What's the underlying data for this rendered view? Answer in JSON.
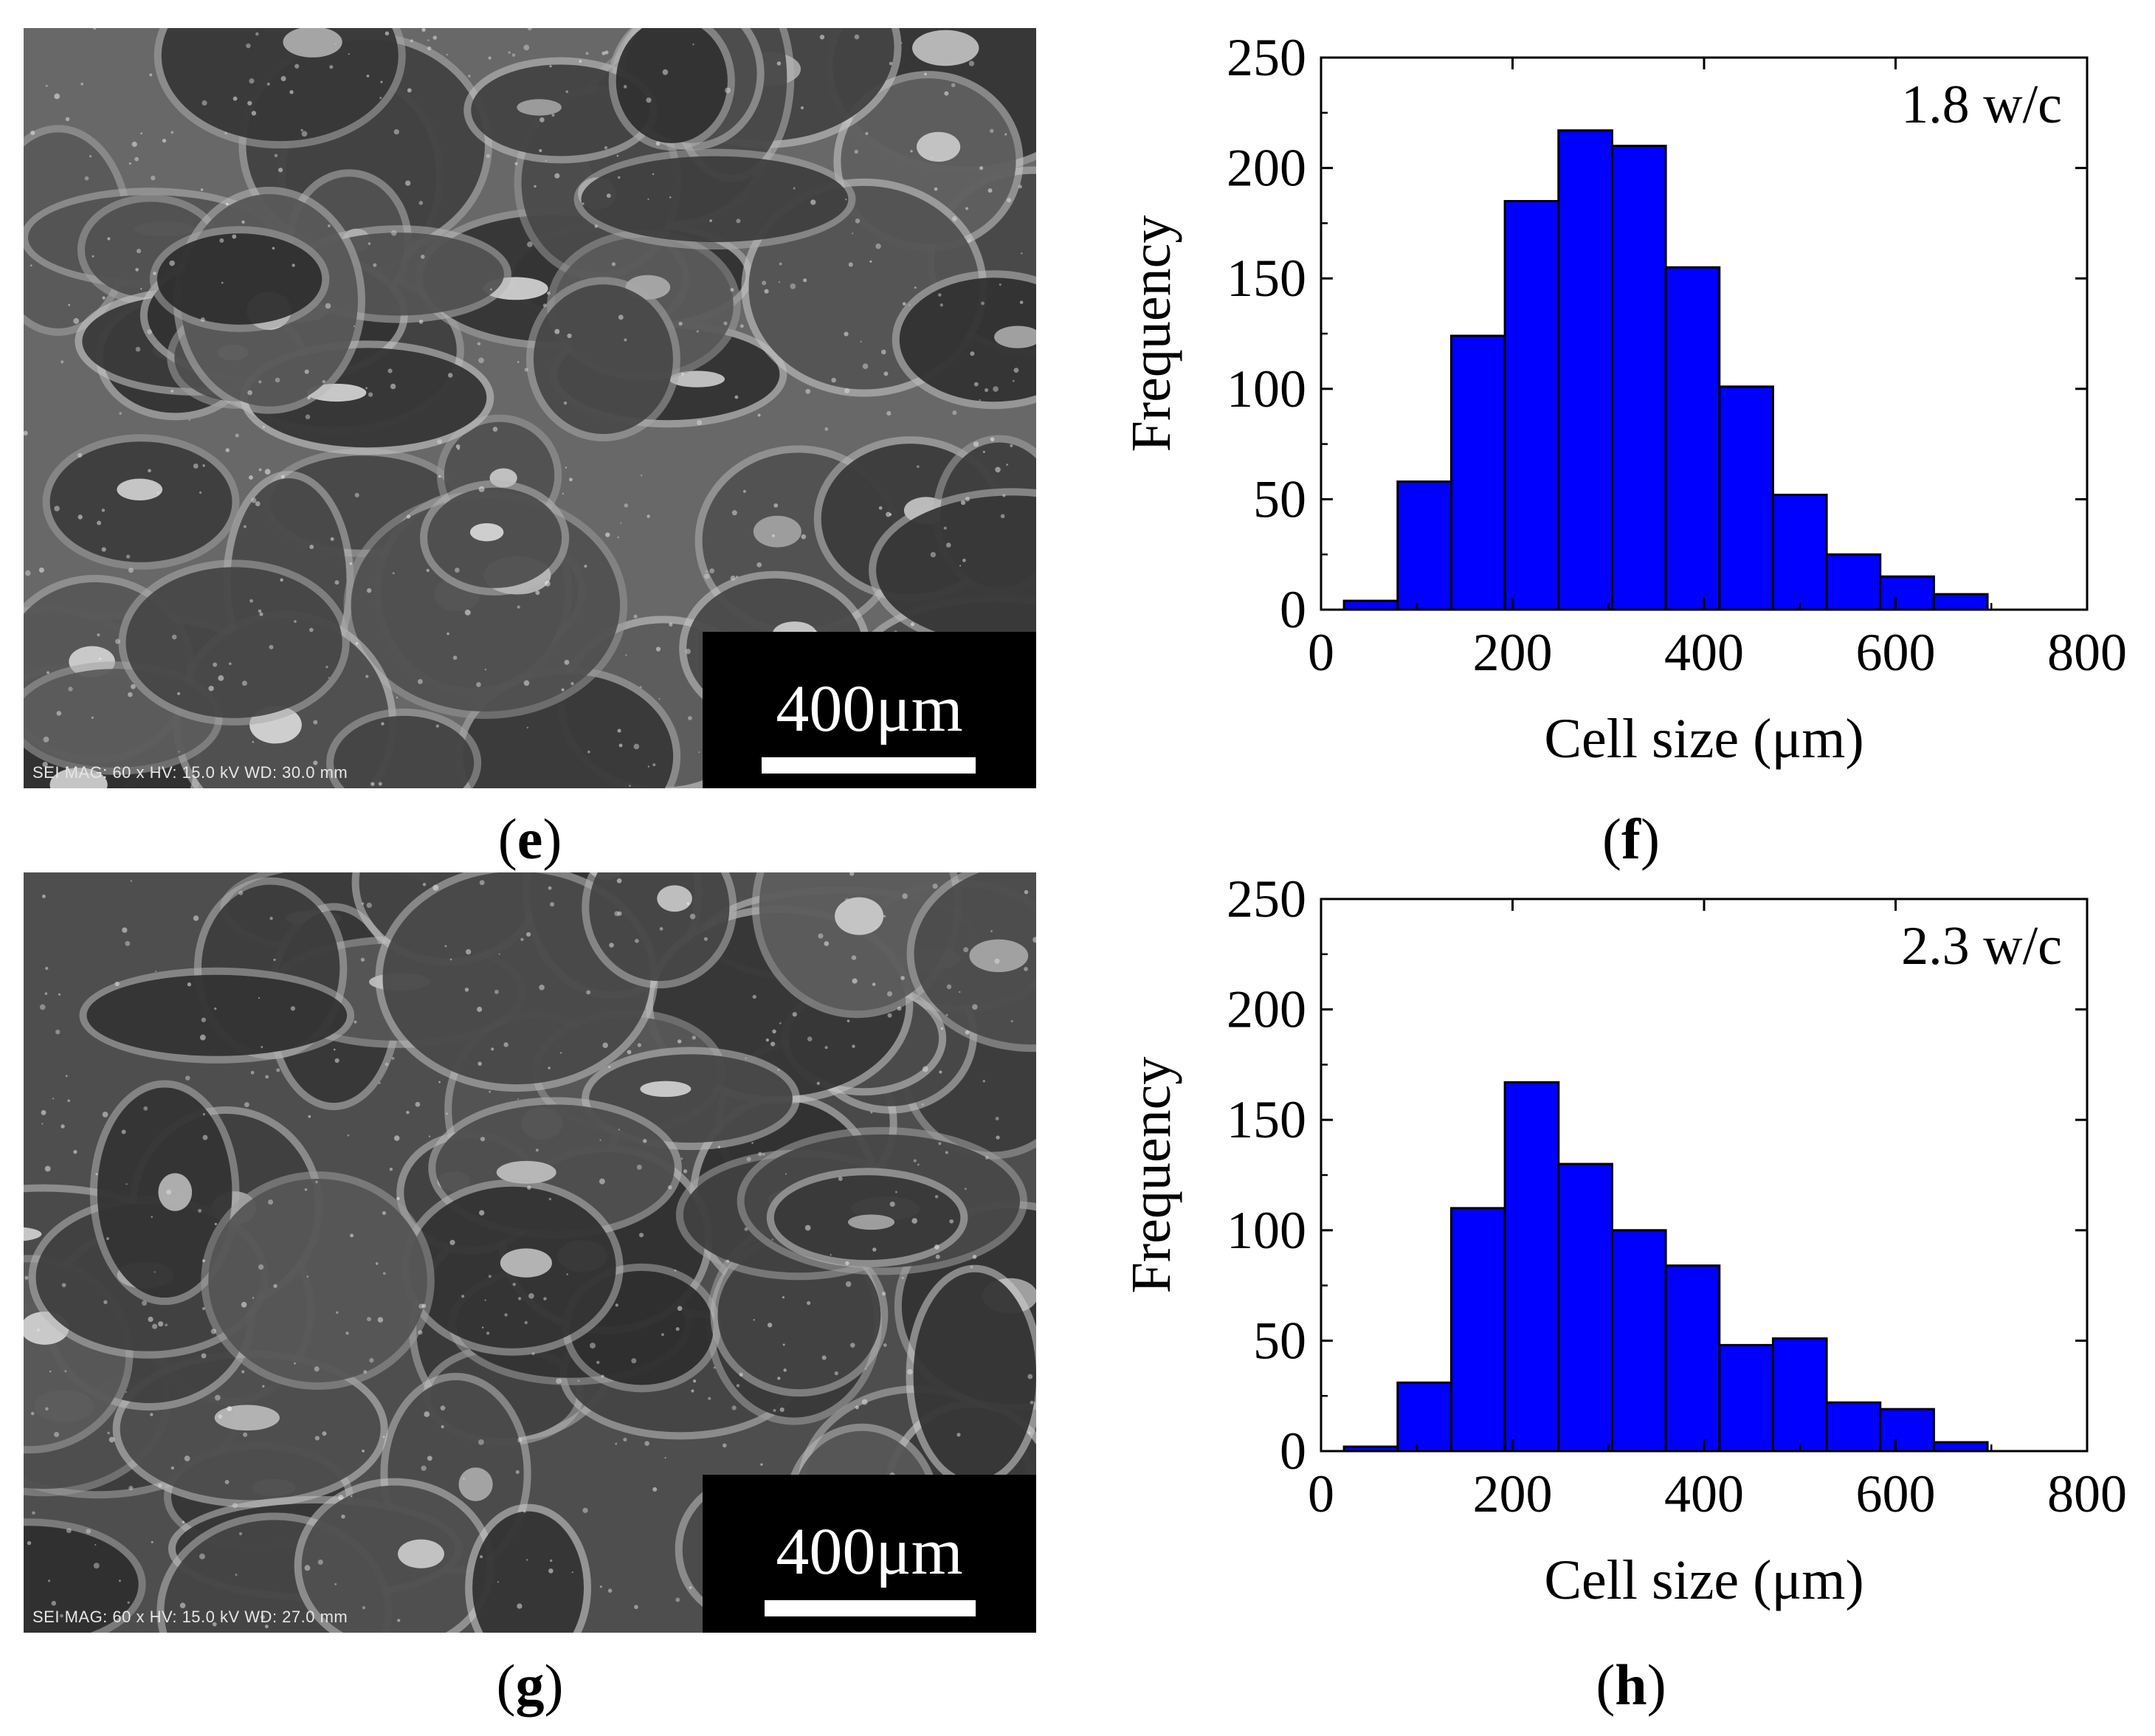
{
  "panels": {
    "e": {
      "label": "e",
      "scale_bar": "400μm",
      "sem_info": "SEI  MAG: 60 x  HV: 15.0 kV  WD: 30.0 mm"
    },
    "f": {
      "label": "f"
    },
    "g": {
      "label": "g",
      "scale_bar": "400μm",
      "sem_info": "SEI  MAG: 60 x  HV: 15.0 kV  WD: 27.0 mm"
    },
    "h": {
      "label": "h"
    }
  },
  "chart_data": [
    {
      "type": "bar",
      "subtype": "histogram",
      "annotation": "1.8 w/c",
      "xlabel": "Cell size (μm)",
      "ylabel": "Frequency",
      "xlim": [
        0,
        800
      ],
      "ylim": [
        0,
        250
      ],
      "xticks": [
        0,
        200,
        400,
        600,
        800
      ],
      "yticks": [
        0,
        50,
        100,
        150,
        200,
        250
      ],
      "bin_width": 56,
      "bin_starts": [
        24,
        80,
        136,
        192,
        248,
        304,
        360,
        416,
        472,
        528,
        584,
        640
      ],
      "values": [
        4,
        58,
        124,
        185,
        217,
        210,
        155,
        101,
        52,
        25,
        15,
        7
      ],
      "bar_color": "#0000ff"
    },
    {
      "type": "bar",
      "subtype": "histogram",
      "annotation": "2.3 w/c",
      "xlabel": "Cell size (μm)",
      "ylabel": "Frequency",
      "xlim": [
        0,
        800
      ],
      "ylim": [
        0,
        250
      ],
      "xticks": [
        0,
        200,
        400,
        600,
        800
      ],
      "yticks": [
        0,
        50,
        100,
        150,
        200,
        250
      ],
      "bin_width": 56,
      "bin_starts": [
        24,
        80,
        136,
        192,
        248,
        304,
        360,
        416,
        472,
        528,
        584,
        640
      ],
      "values": [
        2,
        31,
        110,
        167,
        130,
        100,
        84,
        48,
        51,
        22,
        19,
        4
      ],
      "bar_color": "#0000ff"
    }
  ]
}
